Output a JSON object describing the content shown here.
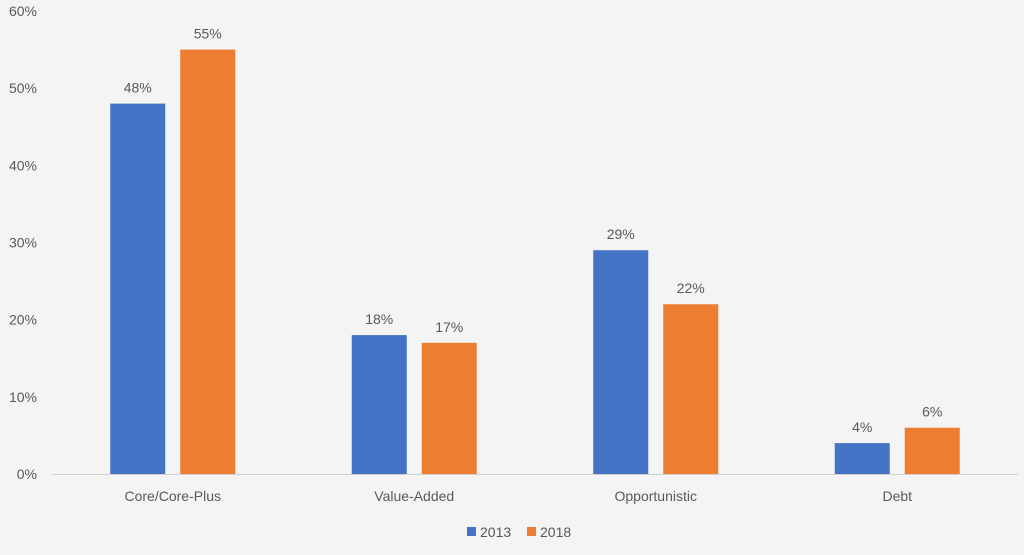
{
  "chart_data": {
    "type": "bar",
    "title": "",
    "xlabel": "",
    "ylabel": "",
    "ylim": [
      0,
      60
    ],
    "yticks": [
      0,
      10,
      20,
      30,
      40,
      50,
      60
    ],
    "ytick_labels": [
      "0%",
      "10%",
      "20%",
      "30%",
      "40%",
      "50%",
      "60%"
    ],
    "categories": [
      "Core/Core-Plus",
      "Value-Added",
      "Opportunistic",
      "Debt"
    ],
    "series": [
      {
        "name": "2013",
        "color": "#4472C4",
        "values": [
          48,
          18,
          29,
          4
        ],
        "labels": [
          "48%",
          "18%",
          "29%",
          "4%"
        ]
      },
      {
        "name": "2018",
        "color": "#ED7D31",
        "values": [
          55,
          17,
          22,
          6
        ],
        "labels": [
          "55%",
          "17%",
          "22%",
          "6%"
        ]
      }
    ],
    "grid": false,
    "legend": "bottom-center"
  }
}
